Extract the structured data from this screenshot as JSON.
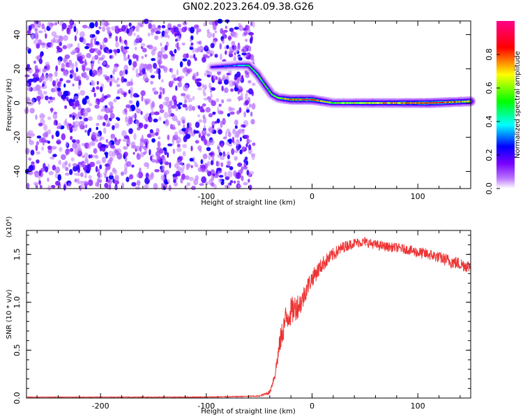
{
  "title": "GN02.2023.264.09.38.G26",
  "chart_data": [
    {
      "type": "heatmap",
      "title": "",
      "xlabel": "Height of straight line (km)",
      "ylabel": "Frequency (Hz)",
      "xlim": [
        -270,
        150
      ],
      "ylim": [
        -50,
        48
      ],
      "x_ticks": [
        -200,
        -100,
        0,
        100
      ],
      "x_tick_labels": [
        "-200",
        "-100",
        "0",
        "100"
      ],
      "y_ticks": [
        -40,
        -20,
        0,
        20,
        40
      ],
      "y_tick_labels": [
        "-40",
        "-20",
        "0",
        "20",
        "40"
      ],
      "colorbar": {
        "label": "Normalized spectral amplitude",
        "range": [
          0,
          1
        ],
        "ticks": [
          0.0,
          0.2,
          0.4,
          0.6,
          0.8
        ],
        "tick_labels": [
          "0.0",
          "0.2",
          "0.4",
          "0.6",
          "0.8"
        ],
        "colormap": [
          "#ffffff",
          "#8800ff",
          "#0000ff",
          "#00ffff",
          "#00ff00",
          "#ffff00",
          "#ff0000",
          "#ff0088"
        ]
      },
      "noise_region": {
        "x_range": [
          -270,
          -55
        ],
        "amplitude": [
          0.05,
          0.25
        ]
      },
      "ridge": {
        "x": [
          -95,
          -70,
          -60,
          -52,
          -44,
          -38,
          -32,
          -20,
          0,
          20,
          50,
          80,
          110,
          150
        ],
        "y": [
          21,
          22,
          22,
          17,
          10,
          5,
          3,
          2,
          2,
          0,
          0,
          0,
          0,
          1
        ],
        "amplitude": [
          0.2,
          0.35,
          0.45,
          0.5,
          0.5,
          0.55,
          0.6,
          0.85,
          0.9,
          0.55,
          0.7,
          0.75,
          0.9,
          0.7
        ]
      },
      "grid": false
    },
    {
      "type": "line",
      "title": "",
      "xlabel": "Height of straight line (km)",
      "ylabel": "SNR (10 * v/v)",
      "scale_label": "(x10⁴)",
      "xlim": [
        -270,
        150
      ],
      "ylim": [
        0,
        1.75
      ],
      "x_ticks": [
        -200,
        -100,
        0,
        100
      ],
      "x_tick_labels": [
        "-200",
        "-100",
        "0",
        "100"
      ],
      "y_ticks": [
        0.0,
        0.5,
        1.0,
        1.5
      ],
      "y_tick_labels": [
        "0.0",
        "0.5",
        "1.0",
        "1.5"
      ],
      "series": [
        {
          "color": "#ee3333",
          "x": [
            -270,
            -200,
            -100,
            -50,
            -40,
            -35,
            -30,
            -25,
            -20,
            -15,
            -10,
            -5,
            0,
            10,
            20,
            30,
            40,
            50,
            60,
            70,
            80,
            90,
            100,
            110,
            120,
            130,
            140,
            150
          ],
          "y": [
            0.01,
            0.01,
            0.01,
            0.02,
            0.06,
            0.25,
            0.6,
            0.82,
            0.9,
            0.95,
            1.0,
            1.15,
            1.25,
            1.4,
            1.5,
            1.58,
            1.62,
            1.63,
            1.6,
            1.58,
            1.57,
            1.55,
            1.52,
            1.5,
            1.47,
            1.43,
            1.4,
            1.37
          ],
          "noise": [
            0.003,
            0.003,
            0.004,
            0.005,
            0.02,
            0.06,
            0.12,
            0.15,
            0.15,
            0.14,
            0.12,
            0.1,
            0.09,
            0.08,
            0.07,
            0.06,
            0.05,
            0.05,
            0.05,
            0.05,
            0.05,
            0.05,
            0.06,
            0.06,
            0.06,
            0.07,
            0.07,
            0.07
          ]
        }
      ],
      "grid": false
    }
  ]
}
